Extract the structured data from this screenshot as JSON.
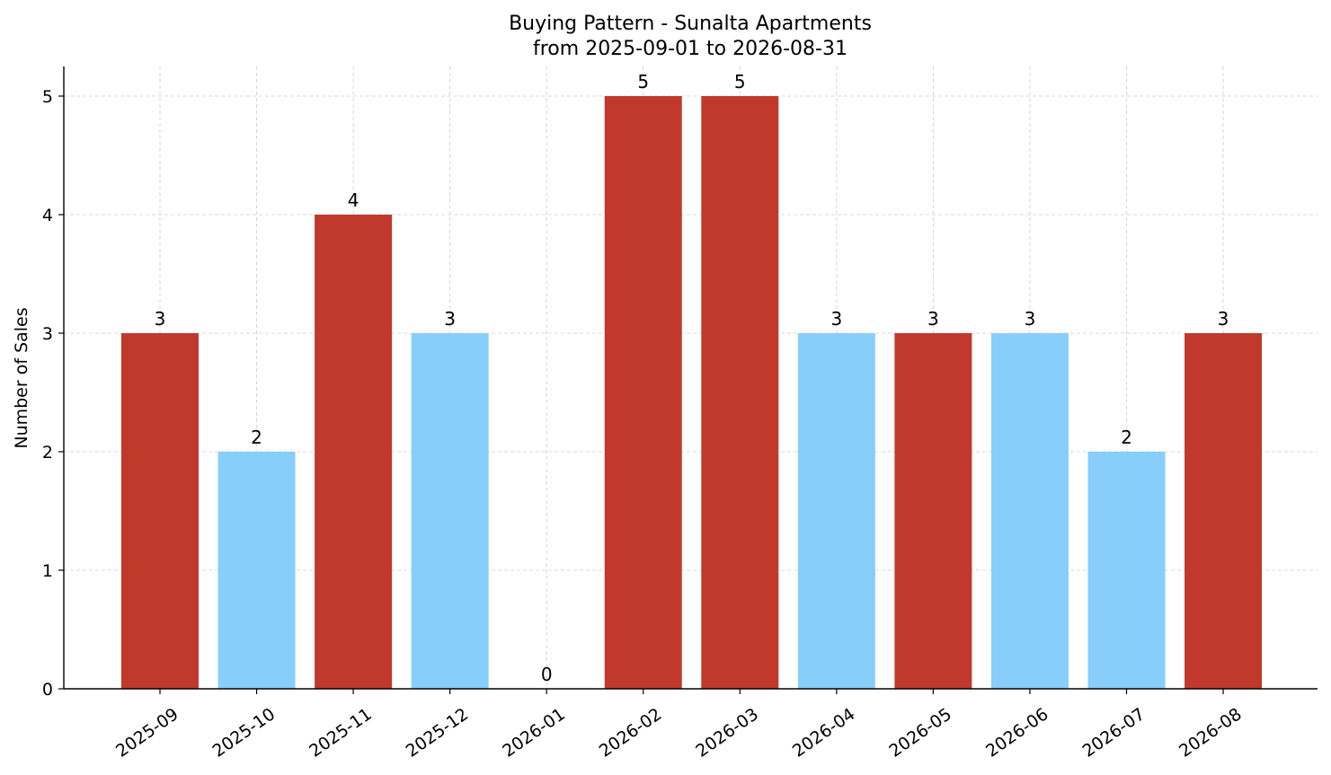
{
  "chart_data": {
    "type": "bar",
    "title_lines": [
      "Buying Pattern - Sunalta Apartments",
      "from 2025-09-01 to 2026-08-31"
    ],
    "xlabel": "",
    "ylabel": "Number of Sales",
    "categories": [
      "2025-09",
      "2025-10",
      "2025-11",
      "2025-12",
      "2026-01",
      "2026-02",
      "2026-03",
      "2026-04",
      "2026-05",
      "2026-06",
      "2026-07",
      "2026-08"
    ],
    "values": [
      3,
      2,
      4,
      3,
      0,
      5,
      5,
      3,
      3,
      3,
      2,
      3
    ],
    "bar_colors": [
      "#c0392b",
      "#87cefa",
      "#c0392b",
      "#87cefa",
      "#87cefa",
      "#c0392b",
      "#c0392b",
      "#87cefa",
      "#c0392b",
      "#87cefa",
      "#87cefa",
      "#c0392b"
    ],
    "yticks": [
      0,
      1,
      2,
      3,
      4,
      5
    ],
    "ylim": [
      0,
      5.25
    ],
    "grid": true,
    "data_labels": true
  }
}
